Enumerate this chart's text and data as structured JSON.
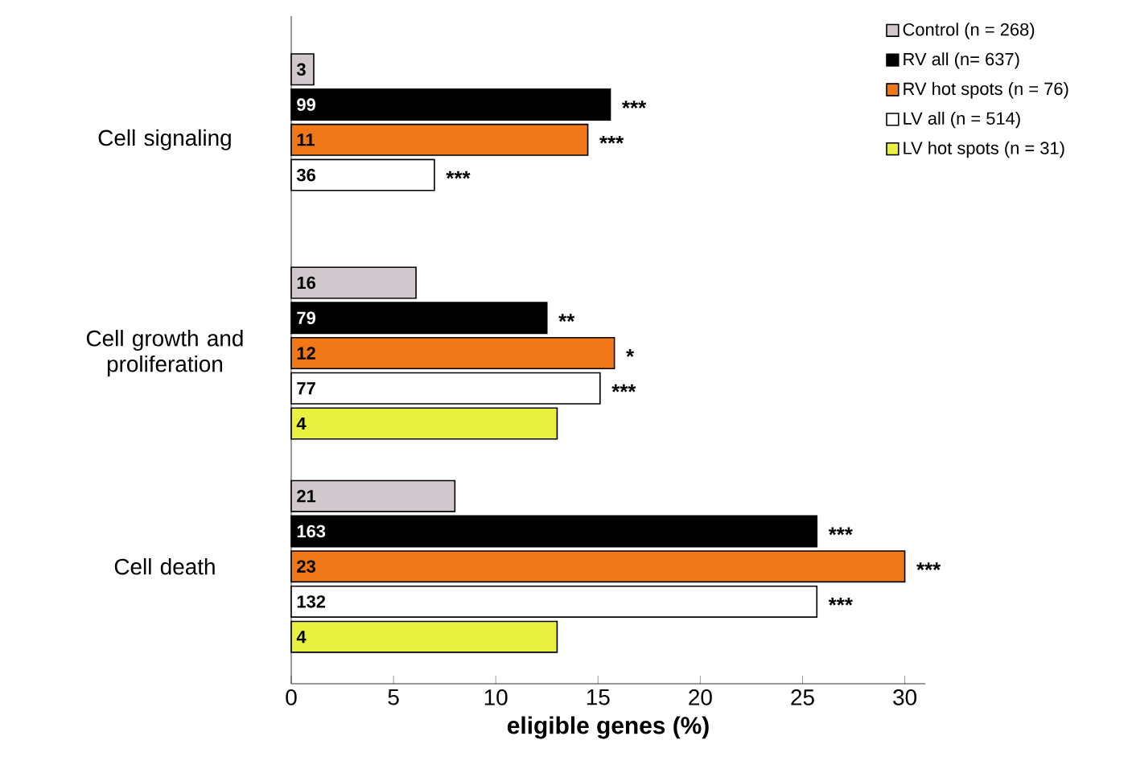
{
  "chart_data": {
    "type": "bar",
    "orientation": "horizontal",
    "categories": [
      "Cell signaling",
      "Cell growth and proliferation",
      "Cell death"
    ],
    "xlabel": "eligible genes (%)",
    "xlim": [
      0,
      31
    ],
    "xticks": [
      0,
      5,
      10,
      15,
      20,
      25,
      30
    ],
    "legend": "top right",
    "series": [
      {
        "name": "Control (n = 268)",
        "color": "#d0c8cc",
        "values": [
          1.1,
          6.1,
          8.0
        ]
      },
      {
        "name": "RV all (n= 637)",
        "color": "#000000",
        "values": [
          15.6,
          12.5,
          25.7
        ]
      },
      {
        "name": "RV hot spots (n = 76)",
        "color": "#f07818",
        "values": [
          14.5,
          15.8,
          30.0
        ]
      },
      {
        "name": "LV all (n = 514)",
        "color": "#ffffff",
        "values": [
          7.0,
          15.1,
          25.7
        ]
      },
      {
        "name": "LV hot spots (n = 31)",
        "color": "#e8f040",
        "values": [
          null,
          13.0,
          13.0
        ]
      }
    ],
    "annotations": [
      "3",
      "99",
      "11",
      "36",
      "16",
      "79",
      "12",
      "77",
      "4",
      "21",
      "163",
      "23",
      "132",
      "4",
      "***",
      "***",
      "***",
      "**",
      "*",
      "***",
      "***",
      "***",
      "***"
    ]
  }
}
